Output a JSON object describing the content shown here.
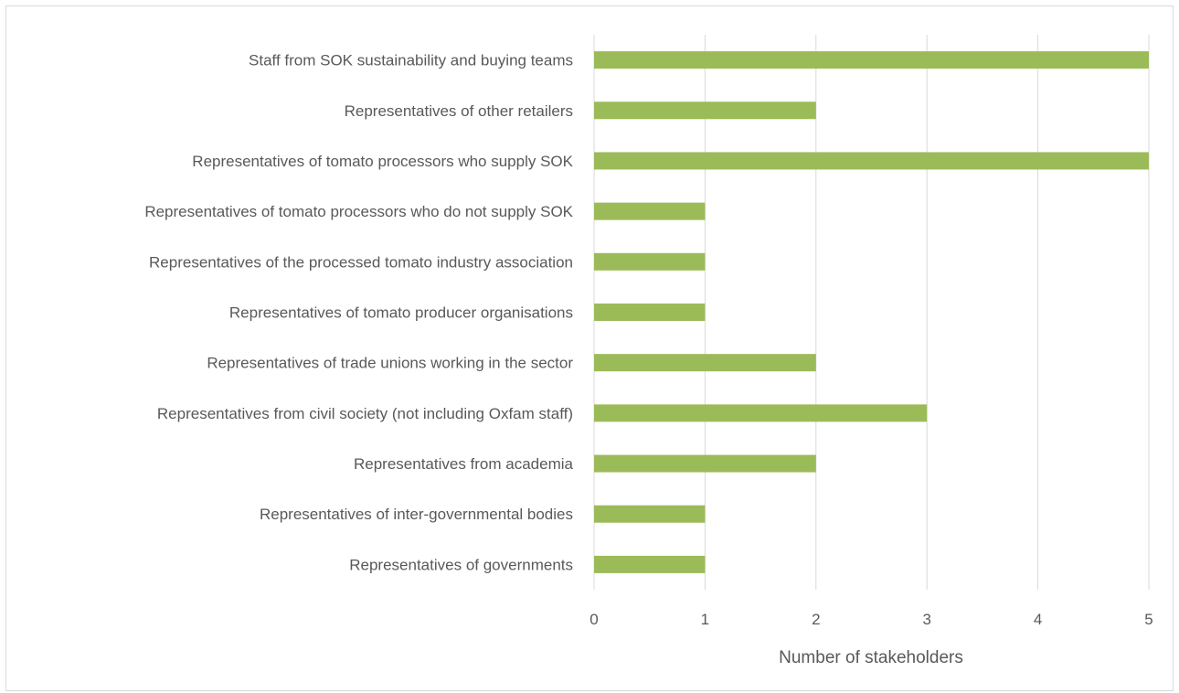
{
  "chart_data": {
    "type": "bar",
    "orientation": "horizontal",
    "categories": [
      "Staff from SOK sustainability and buying teams",
      "Representatives of other retailers",
      "Representatives of tomato processors who supply SOK",
      "Representatives of tomato processors who do not supply SOK",
      "Representatives of the processed tomato industry association",
      "Representatives of tomato producer organisations",
      "Representatives of trade unions working in the sector",
      "Representatives from civil society (not including Oxfam staff)",
      "Representatives from academia",
      "Representatives of inter-governmental bodies",
      "Representatives of governments"
    ],
    "values": [
      5,
      2,
      5,
      1,
      1,
      1,
      2,
      3,
      2,
      1,
      1
    ],
    "xlabel": "Number of stakeholders",
    "ylabel": "",
    "xlim": [
      0,
      5
    ],
    "xticks": [
      "0",
      "1",
      "2",
      "3",
      "4",
      "5"
    ],
    "grid": "vertical",
    "legend": "none",
    "bar_color": "#9bbb59",
    "grid_color": "#d9d9d9",
    "text_color": "#595959"
  }
}
